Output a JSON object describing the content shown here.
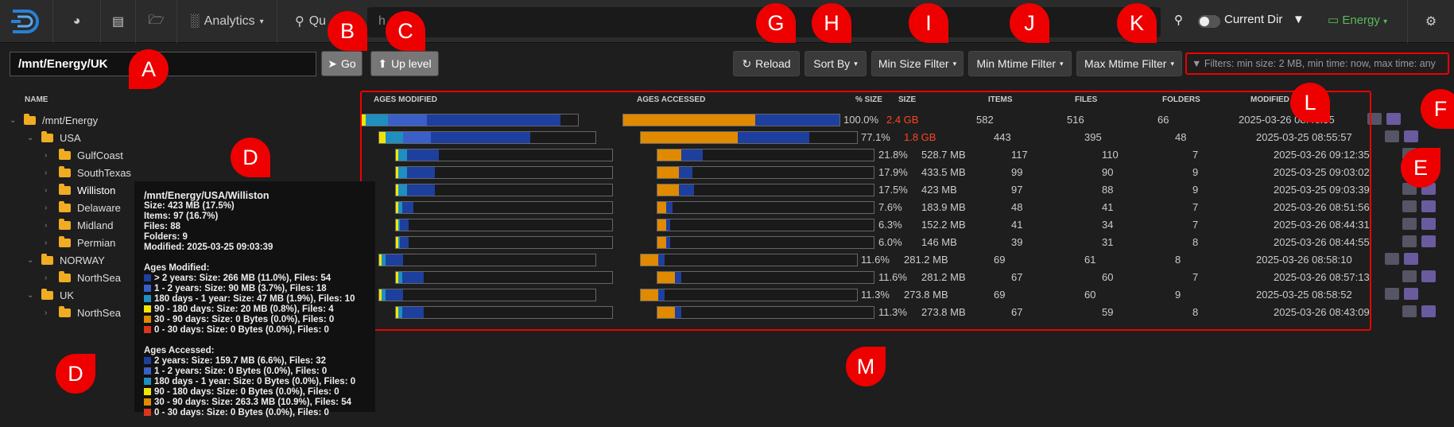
{
  "topbar": {
    "nav_analytics": "Analytics",
    "search_left": "Qu",
    "search_placeholder": "h",
    "current_dir": "Current Dir",
    "index_name": "Energy"
  },
  "toolbar": {
    "path": "/mnt/Energy/UK",
    "go": "Go",
    "up": "Up level",
    "reload": "Reload",
    "sort": "Sort By",
    "min_size": "Min Size Filter",
    "min_mtime": "Min Mtime Filter",
    "max_mtime": "Max Mtime Filter",
    "filters": "Filters: min size: 2 MB, min time: now, max time: any"
  },
  "headers": {
    "name": "NAME",
    "ages_modified": "AGES MODIFIED",
    "ages_accessed": "AGES ACCESSED",
    "pct_size": "% SIZE",
    "size": "SIZE",
    "items": "ITEMS",
    "files": "FILES",
    "folders": "FOLDERS",
    "modified": "MODIFIED"
  },
  "tree": [
    {
      "label": "/mnt/Energy",
      "indent": 0,
      "caret": "⌄"
    },
    {
      "label": "USA",
      "indent": 1,
      "caret": "⌄"
    },
    {
      "label": "GulfCoast",
      "indent": 2,
      "caret": "›"
    },
    {
      "label": "SouthTexas",
      "indent": 2,
      "caret": "›"
    },
    {
      "label": "Williston",
      "indent": 2,
      "caret": "›"
    },
    {
      "label": "Delaware",
      "indent": 2,
      "caret": "›"
    },
    {
      "label": "Midland",
      "indent": 2,
      "caret": "›"
    },
    {
      "label": "Permian",
      "indent": 2,
      "caret": "›"
    },
    {
      "label": "NORWAY",
      "indent": 1,
      "caret": "⌄"
    },
    {
      "label": "NorthSea",
      "indent": 2,
      "caret": "›"
    },
    {
      "label": "UK",
      "indent": 1,
      "caret": "⌄"
    },
    {
      "label": "NorthSea",
      "indent": 2,
      "caret": "›"
    }
  ],
  "rows": [
    {
      "pct": "100.0%",
      "size": "2.4 GB",
      "items": "582",
      "files": "516",
      "folders": "66",
      "modified": "2025-03-26 08:46:55",
      "red": true
    },
    {
      "pct": "77.1%",
      "size": "1.8 GB",
      "items": "443",
      "files": "395",
      "folders": "48",
      "modified": "2025-03-25 08:55:57",
      "red": true
    },
    {
      "pct": "21.8%",
      "size": "528.7 MB",
      "items": "117",
      "files": "110",
      "folders": "7",
      "modified": "2025-03-26 09:12:35"
    },
    {
      "pct": "17.9%",
      "size": "433.5 MB",
      "items": "99",
      "files": "90",
      "folders": "9",
      "modified": "2025-03-25 09:03:02"
    },
    {
      "pct": "17.5%",
      "size": "423 MB",
      "items": "97",
      "files": "88",
      "folders": "9",
      "modified": "2025-03-25 09:03:39"
    },
    {
      "pct": "7.6%",
      "size": "183.9 MB",
      "items": "48",
      "files": "41",
      "folders": "7",
      "modified": "2025-03-26 08:51:56"
    },
    {
      "pct": "6.3%",
      "size": "152.2 MB",
      "items": "41",
      "files": "34",
      "folders": "7",
      "modified": "2025-03-26 08:44:31"
    },
    {
      "pct": "6.0%",
      "size": "146 MB",
      "items": "39",
      "files": "31",
      "folders": "8",
      "modified": "2025-03-26 08:44:55"
    },
    {
      "pct": "11.6%",
      "size": "281.2 MB",
      "items": "69",
      "files": "61",
      "folders": "8",
      "modified": "2025-03-26 08:58:10"
    },
    {
      "pct": "11.6%",
      "size": "281.2 MB",
      "items": "67",
      "files": "60",
      "folders": "7",
      "modified": "2025-03-26 08:57:13"
    },
    {
      "pct": "11.3%",
      "size": "273.8 MB",
      "items": "69",
      "files": "60",
      "folders": "9",
      "modified": "2025-03-25 08:58:52"
    },
    {
      "pct": "11.3%",
      "size": "273.8 MB",
      "items": "67",
      "files": "59",
      "folders": "8",
      "modified": "2025-03-26 08:43:09"
    }
  ],
  "tooltip": {
    "title": "/mnt/Energy/USA/Williston",
    "lines": [
      "Size: 423 MB (17.5%)",
      "Items: 97 (16.7%)",
      "Files: 88",
      "Folders: 9",
      "Modified: 2025-03-25 09:03:39"
    ],
    "mod_title": "Ages Modified:",
    "mod": [
      "> 2 years: Size: 266 MB (11.0%), Files: 54",
      "1 - 2 years: Size: 90 MB (3.7%), Files: 18",
      "180 days - 1 year: Size: 47 MB (1.9%), Files: 10",
      "90 - 180 days: Size: 20 MB (0.8%), Files: 4",
      "30 - 90 days: Size: 0 Bytes (0.0%), Files: 0",
      "0 - 30 days: Size: 0 Bytes (0.0%), Files: 0"
    ],
    "acc_title": "Ages Accessed:",
    "acc": [
      "2 years: Size: 159.7 MB (6.6%), Files: 32",
      "1 - 2 years: Size: 0 Bytes (0.0%), Files: 0",
      "180 days - 1 year: Size: 0 Bytes (0.0%), Files: 0",
      "90 - 180 days: Size: 0 Bytes (0.0%), Files: 0",
      "30 - 90 days: Size: 263.3 MB (10.9%), Files: 54",
      "0 - 30 days: Size: 0 Bytes (0.0%), Files: 0"
    ],
    "colors": [
      "#1d3f9e",
      "#3a5fc8",
      "#1e8fbf",
      "#f2e600",
      "#e08a00",
      "#d9361c"
    ]
  },
  "annotations": [
    "A",
    "B",
    "C",
    "D",
    "D",
    "E",
    "F",
    "G",
    "H",
    "I",
    "J",
    "K",
    "L",
    "M"
  ],
  "colors": {
    "accent": "#5cb85c",
    "red": "#ff4422",
    "annot": "#e00000"
  }
}
